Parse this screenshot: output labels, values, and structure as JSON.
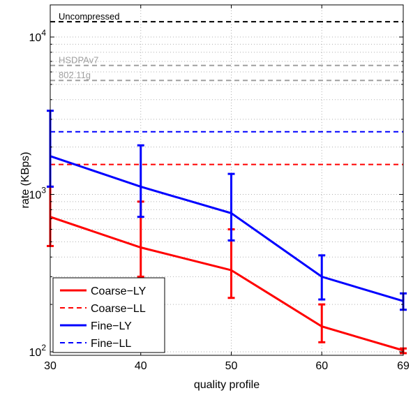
{
  "chart_data": {
    "type": "line",
    "title": "",
    "xlabel": "quality profile",
    "ylabel": "rate (KBps)",
    "x": [
      30,
      40,
      50,
      60,
      69
    ],
    "x_ticks": [
      "30",
      "40",
      "50",
      "60",
      "69"
    ],
    "xlim": [
      30,
      69
    ],
    "yscale": "log",
    "ylim": [
      95,
      16000
    ],
    "y_ticks": [
      {
        "value": 100,
        "base": "10",
        "exp": "2"
      },
      {
        "value": 1000,
        "base": "10",
        "exp": "3"
      },
      {
        "value": 10000,
        "base": "10",
        "exp": "4"
      }
    ],
    "grid": true,
    "legend_position": "bottom-left",
    "series": [
      {
        "name": "Coarse−LY",
        "style": "solid",
        "color": "#ff0000",
        "values": [
          720,
          460,
          330,
          145,
          102
        ],
        "err_low": [
          470,
          300,
          220,
          115,
          98
        ],
        "err_high": [
          1120,
          900,
          600,
          200,
          105
        ]
      },
      {
        "name": "Coarse−LL",
        "style": "dashed",
        "color": "#ff0000",
        "values": [
          1550,
          1550,
          1550,
          1550,
          1550
        ]
      },
      {
        "name": "Fine−LY",
        "style": "solid",
        "color": "#0000ff",
        "values": [
          1750,
          1120,
          760,
          300,
          210
        ],
        "err_low": [
          1120,
          720,
          510,
          215,
          185
        ],
        "err_high": [
          3400,
          2050,
          1350,
          410,
          235
        ]
      },
      {
        "name": "Fine−LL",
        "style": "dashed",
        "color": "#0000ff",
        "values": [
          2500,
          2500,
          2500,
          2500,
          2500
        ]
      }
    ],
    "reference_lines": [
      {
        "label": "Uncompressed",
        "value": 12500,
        "color": "#000000"
      },
      {
        "label": "HSDPAv7",
        "value": 6600,
        "color": "#a0a0a0"
      },
      {
        "label": "802.11g",
        "value": 5300,
        "color": "#a0a0a0"
      }
    ]
  }
}
